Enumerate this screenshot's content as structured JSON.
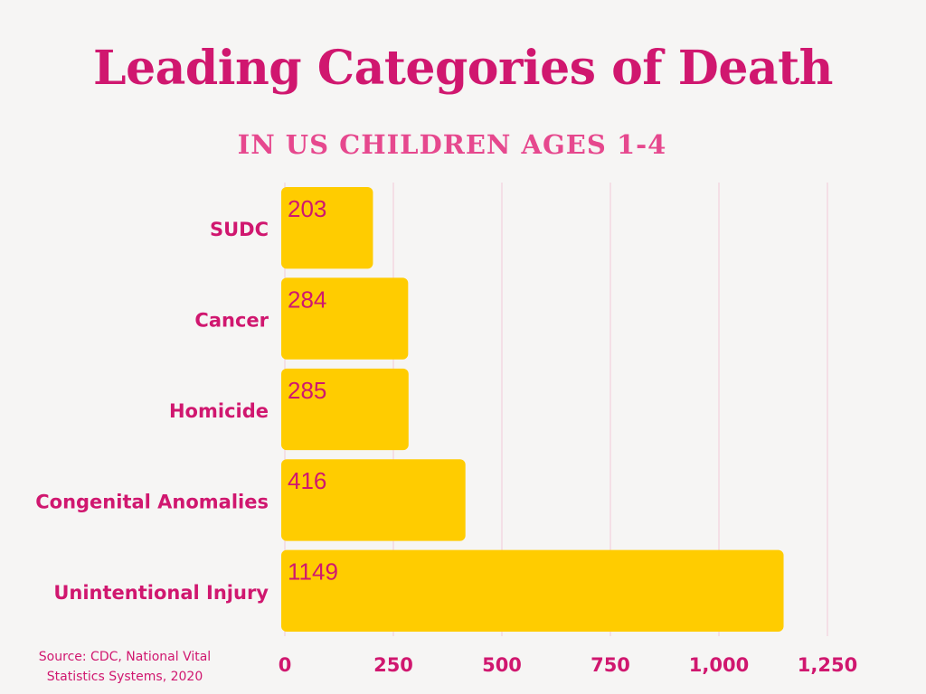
{
  "chart_data": {
    "type": "bar",
    "orientation": "horizontal",
    "title": "Leading Categories of Death",
    "subtitle": "IN US CHILDREN AGES 1-4",
    "categories": [
      "SUDC",
      "Cancer",
      "Homicide",
      "Congenital Anomalies",
      "Unintentional Injury"
    ],
    "values": [
      203,
      284,
      285,
      416,
      1149
    ],
    "data_labels": [
      "203",
      "284",
      "285",
      "416",
      "1149"
    ],
    "xlim": [
      0,
      1250
    ],
    "x_ticks": [
      0,
      250,
      500,
      750,
      1000,
      1250
    ],
    "x_tick_labels": [
      "0",
      "250",
      "500",
      "750",
      "1,000",
      "1,250"
    ],
    "xlabel": "",
    "ylabel": "",
    "grid": true,
    "bar_color": "#ffcc00",
    "text_color": "#d0176f",
    "grid_color": "#f2c9d8"
  },
  "source": "Source: CDC, National Vital Statistics Systems, 2020"
}
